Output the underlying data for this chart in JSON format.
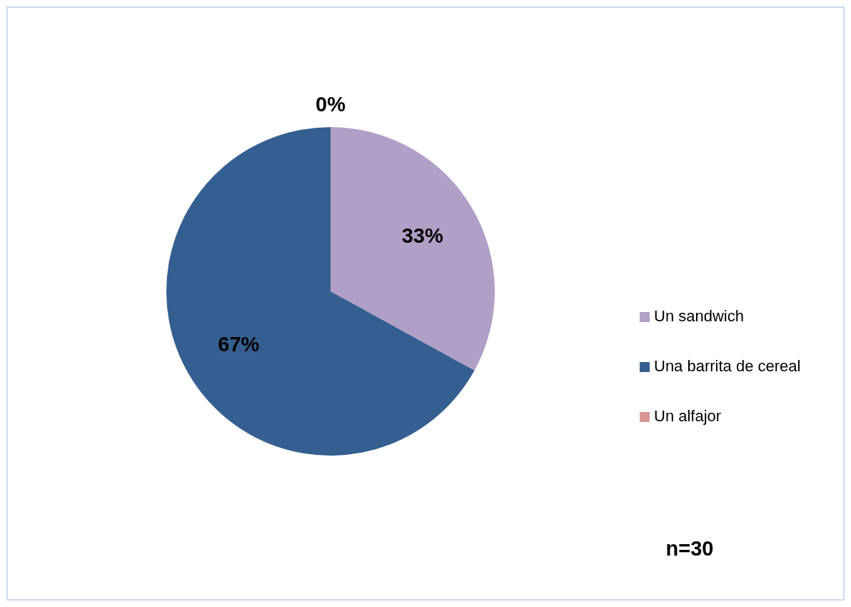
{
  "chart_data": {
    "type": "pie",
    "categories": [
      "Un sandwich",
      "Una barrita de cereal",
      "Un alfajor"
    ],
    "values": [
      33,
      67,
      0
    ],
    "value_labels": [
      "33%",
      "67%",
      "0%"
    ],
    "colors": [
      "#b09fc6",
      "#365f91",
      "#d99694"
    ],
    "legend": "right",
    "annotations": [
      "n=30"
    ]
  }
}
